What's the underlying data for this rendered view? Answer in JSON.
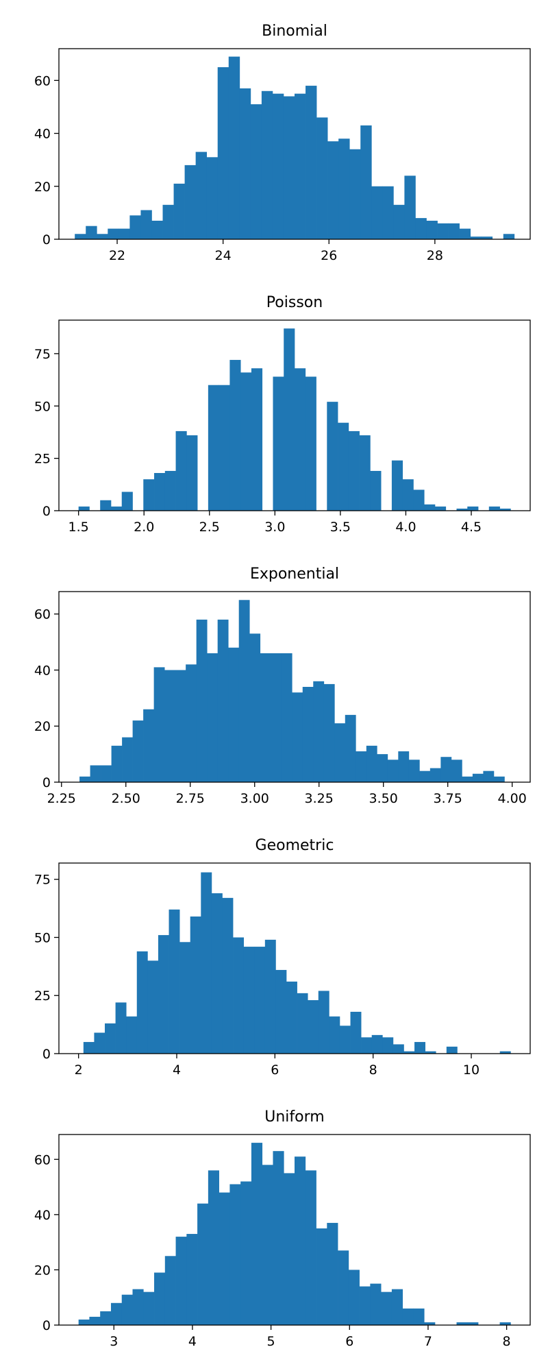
{
  "chart_data": [
    {
      "type": "bar",
      "title": "Binomial",
      "xlabel": "",
      "ylabel": "",
      "xlim": [
        20.9,
        29.8
      ],
      "ylim": [
        0,
        72
      ],
      "xticks": [
        22,
        24,
        26,
        28
      ],
      "xtick_labels": [
        "22",
        "24",
        "26",
        "28"
      ],
      "yticks": [
        0,
        20,
        40,
        60
      ],
      "ytick_labels": [
        "0",
        "20",
        "40",
        "60"
      ],
      "bin_start": 21.2,
      "bin_width": 0.2075,
      "values": [
        2,
        5,
        2,
        4,
        4,
        9,
        11,
        7,
        13,
        21,
        28,
        33,
        31,
        65,
        69,
        57,
        51,
        56,
        55,
        54,
        55,
        58,
        46,
        37,
        38,
        34,
        43,
        20,
        20,
        13,
        24,
        8,
        7,
        6,
        6,
        4,
        1,
        1,
        0,
        2
      ],
      "bar_color": "#1f77b4",
      "grid": false,
      "legend": "none"
    },
    {
      "type": "bar",
      "title": "Poisson",
      "xlabel": "",
      "ylabel": "",
      "xlim": [
        1.35,
        4.95
      ],
      "ylim": [
        0,
        91
      ],
      "xticks": [
        1.5,
        2.0,
        2.5,
        3.0,
        3.5,
        4.0,
        4.5
      ],
      "xtick_labels": [
        "1.5",
        "2.0",
        "2.5",
        "3.0",
        "3.5",
        "4.0",
        "4.5"
      ],
      "yticks": [
        0,
        25,
        50,
        75
      ],
      "ytick_labels": [
        "0",
        "25",
        "50",
        "75"
      ],
      "bin_start": 1.5,
      "bin_width": 0.0825,
      "values": [
        2,
        0,
        5,
        2,
        9,
        0,
        15,
        18,
        19,
        38,
        36,
        0,
        60,
        60,
        72,
        66,
        68,
        0,
        64,
        87,
        68,
        64,
        0,
        52,
        42,
        38,
        36,
        19,
        0,
        24,
        15,
        10,
        3,
        2,
        0,
        1,
        2,
        0,
        2,
        1
      ],
      "bar_color": "#1f77b4",
      "grid": false,
      "legend": "none"
    },
    {
      "type": "bar",
      "title": "Exponential",
      "xlabel": "",
      "ylabel": "",
      "xlim": [
        2.24,
        4.07
      ],
      "ylim": [
        0,
        68
      ],
      "xticks": [
        2.25,
        2.5,
        2.75,
        3.0,
        3.25,
        3.5,
        3.75,
        4.0
      ],
      "xtick_labels": [
        "2.25",
        "2.50",
        "2.75",
        "3.00",
        "3.25",
        "3.50",
        "3.75",
        "4.00"
      ],
      "yticks": [
        0,
        20,
        40,
        60
      ],
      "ytick_labels": [
        "0",
        "20",
        "40",
        "60"
      ],
      "bin_start": 2.32,
      "bin_width": 0.04125,
      "values": [
        2,
        6,
        6,
        13,
        16,
        22,
        26,
        41,
        40,
        40,
        42,
        58,
        46,
        58,
        48,
        65,
        53,
        46,
        46,
        46,
        32,
        34,
        36,
        35,
        21,
        24,
        11,
        13,
        10,
        8,
        11,
        8,
        4,
        5,
        9,
        8,
        2,
        3,
        4,
        2
      ],
      "bar_color": "#1f77b4",
      "grid": false,
      "legend": "none"
    },
    {
      "type": "bar",
      "title": "Geometric",
      "xlabel": "",
      "ylabel": "",
      "xlim": [
        1.6,
        11.2
      ],
      "ylim": [
        0,
        82
      ],
      "xticks": [
        2,
        4,
        6,
        8,
        10
      ],
      "xtick_labels": [
        "2",
        "4",
        "6",
        "8",
        "10"
      ],
      "yticks": [
        0,
        25,
        50,
        75
      ],
      "ytick_labels": [
        "0",
        "25",
        "50",
        "75"
      ],
      "bin_start": 2.1,
      "bin_width": 0.2175,
      "values": [
        5,
        9,
        13,
        22,
        16,
        44,
        40,
        51,
        62,
        48,
        59,
        78,
        69,
        67,
        50,
        46,
        46,
        49,
        36,
        31,
        26,
        23,
        27,
        16,
        12,
        18,
        7,
        8,
        7,
        4,
        1,
        5,
        1,
        0,
        3,
        0,
        0,
        0,
        0,
        1
      ],
      "bar_color": "#1f77b4",
      "grid": false,
      "legend": "none"
    },
    {
      "type": "bar",
      "title": "Uniform",
      "xlabel": "",
      "ylabel": "",
      "xlim": [
        2.3,
        8.3
      ],
      "ylim": [
        0,
        69
      ],
      "xticks": [
        3,
        4,
        5,
        6,
        7,
        8
      ],
      "xtick_labels": [
        "3",
        "4",
        "5",
        "6",
        "7",
        "8"
      ],
      "yticks": [
        0,
        20,
        40,
        60
      ],
      "ytick_labels": [
        "0",
        "20",
        "40",
        "60"
      ],
      "bin_start": 2.55,
      "bin_width": 0.1375,
      "values": [
        2,
        3,
        5,
        8,
        11,
        13,
        12,
        19,
        25,
        32,
        33,
        44,
        56,
        48,
        51,
        52,
        66,
        58,
        63,
        55,
        61,
        56,
        35,
        37,
        27,
        20,
        14,
        15,
        12,
        13,
        6,
        6,
        1,
        0,
        0,
        1,
        1,
        0,
        0,
        1
      ],
      "bar_color": "#1f77b4",
      "grid": false,
      "legend": "none"
    }
  ]
}
